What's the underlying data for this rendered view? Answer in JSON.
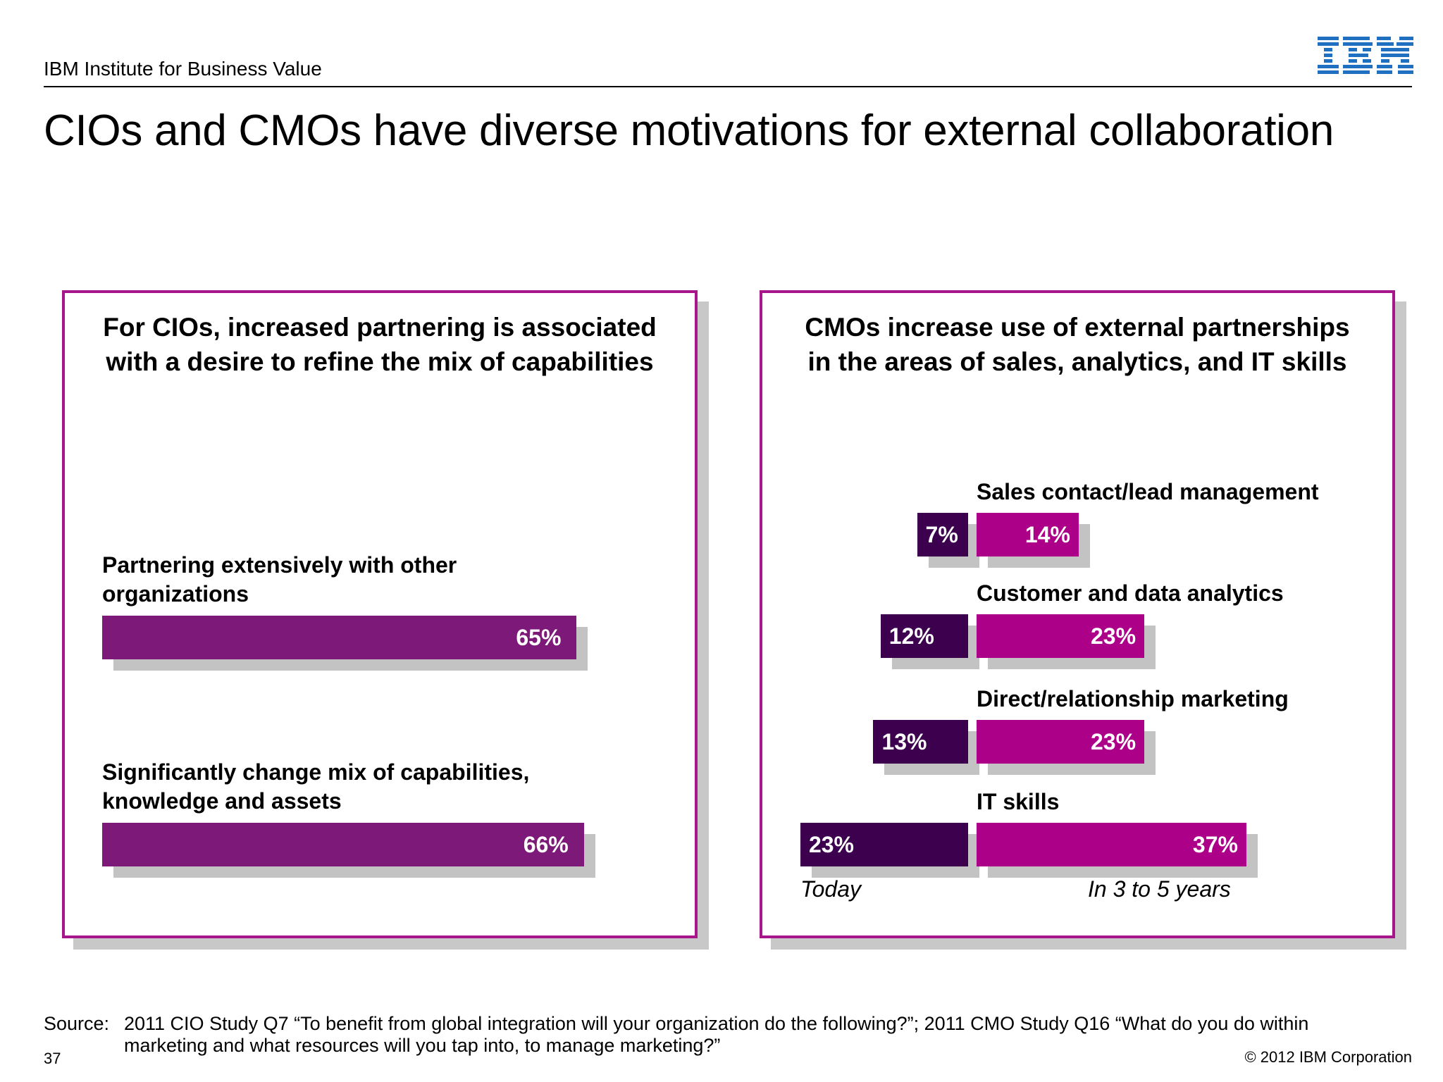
{
  "header": {
    "org": "IBM Institute for Business Value",
    "logo_text": "IBM"
  },
  "title": "CIOs and CMOs have diverse motivations for external collaboration",
  "colors": {
    "panel_border": "#a8168c",
    "cio_bar": "#7d1a79",
    "cmo_today": "#3c004e",
    "cmo_future": "#ad0089",
    "shadow": "#c3c3c3"
  },
  "chart_data": [
    {
      "type": "bar",
      "title": "For CIOs, increased partnering is associated with a desire to refine the mix of capabilities",
      "categories": [
        "Partnering extensively with other organizations",
        "Significantly change mix of capabilities, knowledge and assets"
      ],
      "category_lines": [
        [
          "Partnering extensively with other",
          "organizations"
        ],
        [
          "Significantly change mix of capabilities,",
          "knowledge and assets"
        ]
      ],
      "values": [
        65,
        66
      ],
      "value_labels": [
        "65%",
        "66%"
      ],
      "orientation": "horizontal"
    },
    {
      "type": "bar",
      "title": "CMOs increase use of external partnerships in the areas of sales, analytics, and IT skills",
      "categories": [
        "Sales contact/lead management",
        "Customer and data analytics",
        "Direct/relationship marketing",
        "IT skills"
      ],
      "series": [
        {
          "name": "Today",
          "values": [
            7,
            12,
            13,
            23
          ],
          "value_labels": [
            "7%",
            "12%",
            "13%",
            "23%"
          ]
        },
        {
          "name": "In 3 to 5 years",
          "values": [
            14,
            23,
            23,
            37
          ],
          "value_labels": [
            "14%",
            "23%",
            "23%",
            "37%"
          ]
        }
      ],
      "orientation": "horizontal-butterfly"
    }
  ],
  "footer": {
    "source_label": "Source:",
    "source_text": "2011 CIO Study Q7 “To benefit from global integration will your organization do the following?”; 2011 CMO Study Q16 “What do you do within marketing and what resources will you tap into, to manage marketing?”",
    "page_number": "37",
    "copyright": "© 2012 IBM Corporation"
  }
}
